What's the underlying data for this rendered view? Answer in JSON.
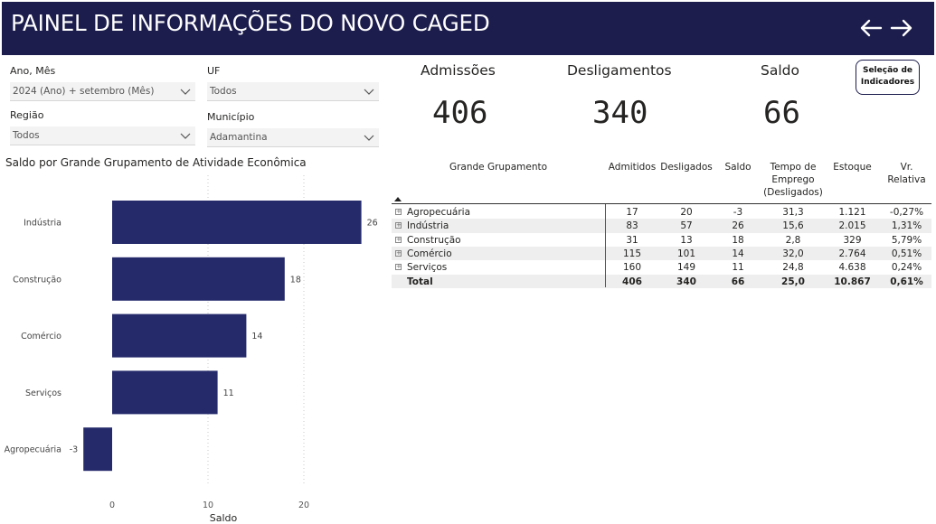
{
  "header": {
    "title": "PAINEL DE INFORMAÇÕES DO NOVO CAGED"
  },
  "filters": {
    "ano_mes": {
      "label": "Ano, Mês",
      "value": "2024 (Ano) + setembro (Mês)"
    },
    "uf": {
      "label": "UF",
      "value": "Todos"
    },
    "regiao": {
      "label": "Região",
      "value": "Todos"
    },
    "municipio": {
      "label": "Município",
      "value": "Adamantina"
    }
  },
  "kpis": {
    "admissoes": {
      "label": "Admissões",
      "value": "406"
    },
    "desligamentos": {
      "label": "Desligamentos",
      "value": "340"
    },
    "saldo": {
      "label": "Saldo",
      "value": "66"
    }
  },
  "button_indicadores": {
    "line1": "Seleção de",
    "line2": "Indicadores"
  },
  "chart_data": {
    "type": "bar",
    "orientation": "horizontal",
    "title": "Saldo por Grande Grupamento de Atividade Econômica",
    "xlabel": "Saldo",
    "ylabel": "",
    "categories": [
      "Indústria",
      "Construção",
      "Comércio",
      "Serviços",
      "Agropecuária"
    ],
    "values": [
      26,
      18,
      14,
      11,
      -3
    ],
    "xticks": [
      0,
      10,
      20
    ],
    "xlim": [
      -3,
      26
    ],
    "bar_color": "#252a6b",
    "grid": true
  },
  "table": {
    "headers": {
      "grupamento": "Grande Grupamento",
      "admitidos": "Admitidos",
      "desligados": "Desligados",
      "saldo": "Saldo",
      "tempo_1": "Tempo de",
      "tempo_2": "Emprego",
      "tempo_3": "(Desligados)",
      "estoque": "Estoque",
      "vr_1": "Vr.",
      "vr_2": "Relativa"
    },
    "rows": [
      {
        "grupamento": "Agropecuária",
        "admitidos": "17",
        "desligados": "20",
        "saldo": "-3",
        "tempo": "31,3",
        "estoque": "1.121",
        "vr": "-0,27%"
      },
      {
        "grupamento": "Indústria",
        "admitidos": "83",
        "desligados": "57",
        "saldo": "26",
        "tempo": "15,6",
        "estoque": "2.015",
        "vr": "1,31%"
      },
      {
        "grupamento": "Construção",
        "admitidos": "31",
        "desligados": "13",
        "saldo": "18",
        "tempo": "2,8",
        "estoque": "329",
        "vr": "5,79%"
      },
      {
        "grupamento": "Comércio",
        "admitidos": "115",
        "desligados": "101",
        "saldo": "14",
        "tempo": "32,0",
        "estoque": "2.764",
        "vr": "0,51%"
      },
      {
        "grupamento": "Serviços",
        "admitidos": "160",
        "desligados": "149",
        "saldo": "11",
        "tempo": "24,8",
        "estoque": "4.638",
        "vr": "0,24%"
      }
    ],
    "total": {
      "grupamento": "Total",
      "admitidos": "406",
      "desligados": "340",
      "saldo": "66",
      "tempo": "25,0",
      "estoque": "10.867",
      "vr": "0,61%"
    }
  },
  "colors": {
    "header_bg": "#1c1d4d",
    "bar": "#252a6b"
  }
}
